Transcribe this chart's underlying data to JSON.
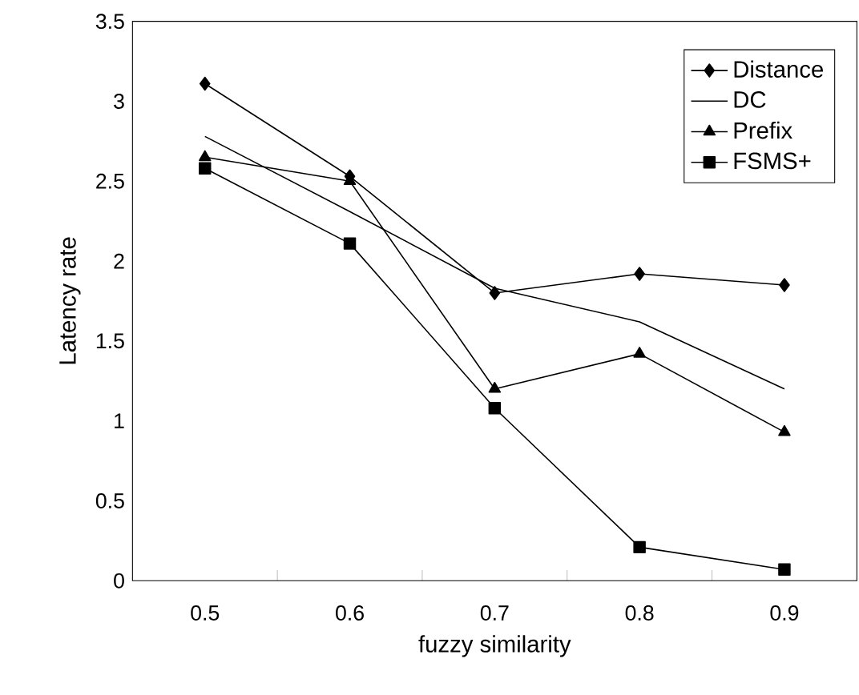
{
  "chart_data": {
    "type": "line",
    "xlabel": "fuzzy similarity",
    "ylabel": "Latency rate",
    "categories": [
      "0.5",
      "0.6",
      "0.7",
      "0.8",
      "0.9"
    ],
    "series": [
      {
        "name": "Distance",
        "color": "#000000",
        "marker": "diamond",
        "values": [
          3.11,
          2.53,
          1.8,
          1.92,
          1.85
        ]
      },
      {
        "name": "DC",
        "color": "#000000",
        "marker": "none",
        "values": [
          2.78,
          2.31,
          1.83,
          1.62,
          1.2
        ]
      },
      {
        "name": "Prefix",
        "color": "#000000",
        "marker": "triangle",
        "values": [
          2.65,
          2.5,
          1.2,
          1.42,
          0.93
        ]
      },
      {
        "name": "FSMS+",
        "color": "#000000",
        "marker": "square",
        "values": [
          2.58,
          2.11,
          1.08,
          0.21,
          0.07
        ]
      }
    ],
    "ylim": [
      0,
      3.5
    ],
    "yticks": [
      0,
      0.5,
      1,
      1.5,
      2,
      2.5,
      3,
      3.5
    ],
    "legend": "top right",
    "grid": false
  }
}
